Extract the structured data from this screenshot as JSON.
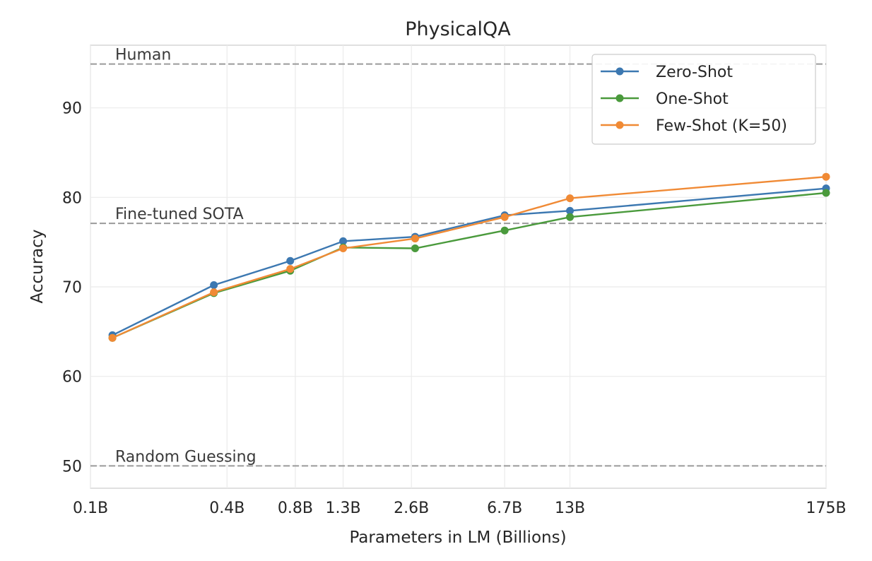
{
  "chart_data": {
    "type": "line",
    "title": "PhysicalQA",
    "xlabel": "Parameters in LM (Billions)",
    "ylabel": "Accuracy",
    "x_scale": "log",
    "x": [
      0.125,
      0.35,
      0.76,
      1.3,
      2.7,
      6.7,
      13,
      175
    ],
    "x_tick_values": [
      0.1,
      0.4,
      0.8,
      1.3,
      2.6,
      6.7,
      13,
      175
    ],
    "x_tick_labels": [
      "0.1B",
      "0.4B",
      "0.8B",
      "1.3B",
      "2.6B",
      "6.7B",
      "13B",
      "175B"
    ],
    "ylim": [
      47.5,
      97
    ],
    "y_ticks": [
      50,
      60,
      70,
      80,
      90
    ],
    "grid": true,
    "legend_position": "top-right",
    "series": [
      {
        "name": "Zero-Shot",
        "color": "#3c78b1",
        "values": [
          64.6,
          70.2,
          72.9,
          75.1,
          75.6,
          78.0,
          78.5,
          81.0
        ]
      },
      {
        "name": "One-Shot",
        "color": "#4a9a3c",
        "values": [
          64.3,
          69.3,
          71.8,
          74.4,
          74.3,
          76.3,
          77.8,
          80.5
        ]
      },
      {
        "name": "Few-Shot (K=50)",
        "color": "#f08a35",
        "values": [
          64.3,
          69.4,
          72.0,
          74.3,
          75.4,
          77.8,
          79.9,
          82.3
        ]
      }
    ],
    "reference_lines": [
      {
        "label": "Human",
        "value": 94.9
      },
      {
        "label": "Fine-tuned SOTA",
        "value": 77.1
      },
      {
        "label": "Random Guessing",
        "value": 50.0
      }
    ]
  }
}
